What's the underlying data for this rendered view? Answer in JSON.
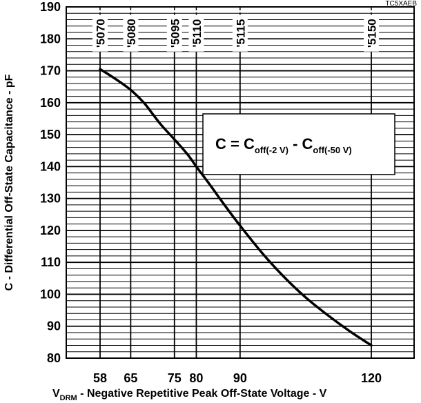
{
  "chart_data": {
    "type": "line",
    "doc_id": "TC5XAEB",
    "xlabel": {
      "main": "V",
      "sub": "DRM",
      "rest": " - Negative Repetitive Peak Off-State Voltage - V"
    },
    "ylabel": "C - Differential Off-State Capacitance - pF",
    "xlim": [
      58,
      120
    ],
    "ylim": [
      80,
      190
    ],
    "x_ticks": [
      58,
      65,
      75,
      80,
      90,
      120
    ],
    "y_ticks": [
      80,
      90,
      100,
      110,
      120,
      130,
      140,
      150,
      160,
      170,
      180,
      190
    ],
    "y_minor_step": 2,
    "grid": true,
    "formula": {
      "lhs": "C = C",
      "sub1": "off(-2 V)",
      "mid": " - C",
      "sub2": "off(-50 V)"
    },
    "device_markers": [
      {
        "label": "'5070",
        "x": 58
      },
      {
        "label": "'5080",
        "x": 65
      },
      {
        "label": "'5095",
        "x": 75
      },
      {
        "label": "'5110",
        "x": 80
      },
      {
        "label": "'5115",
        "x": 90
      },
      {
        "label": "'5150",
        "x": 120
      }
    ],
    "series": [
      {
        "x": [
          58,
          60,
          62,
          65,
          68,
          70,
          72,
          75,
          78,
          80,
          83,
          86,
          90,
          95,
          100,
          105,
          110,
          115,
          120
        ],
        "y": [
          170.5,
          168.8,
          167,
          164,
          160,
          156.5,
          153,
          148.5,
          143.8,
          140,
          134.5,
          128.8,
          121.5,
          113,
          105.5,
          99,
          93.5,
          88.5,
          84
        ]
      }
    ]
  }
}
